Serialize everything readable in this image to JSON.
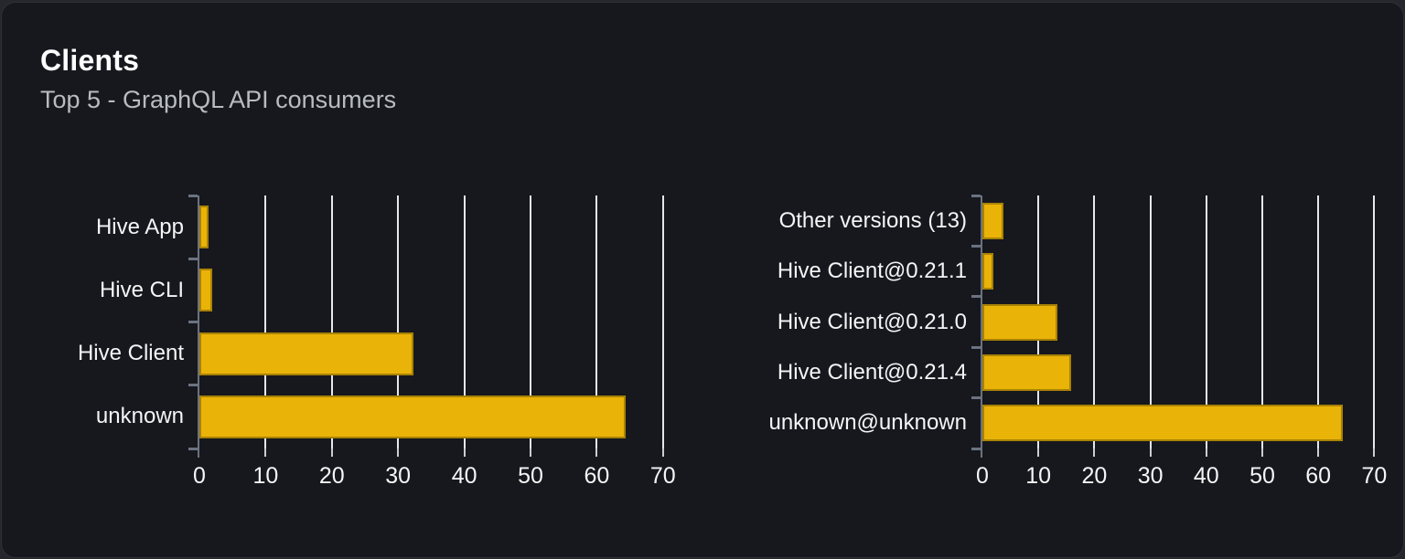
{
  "card": {
    "title": "Clients",
    "subtitle": "Top 5 - GraphQL API consumers"
  },
  "colors": {
    "bar": "#eab308",
    "grid": "#e5e7eb",
    "axis": "#6b7280",
    "tick_text": "#f4f5f6",
    "title_text": "#ffffff",
    "subtitle_text": "#b8bcc1",
    "card_bg": "#16181d",
    "page_bg": "#25272c"
  },
  "chart_data": [
    {
      "type": "bar",
      "orientation": "horizontal",
      "title": "",
      "xlabel": "",
      "ylabel": "",
      "categories": [
        "Hive App",
        "Hive CLI",
        "Hive Client",
        "unknown"
      ],
      "values": [
        1.4,
        1.9,
        32.3,
        64.4
      ],
      "xticks": [
        0,
        10,
        20,
        30,
        40,
        50,
        60,
        70
      ],
      "xlim": [
        0,
        74.5
      ],
      "grid": true,
      "legend": false
    },
    {
      "type": "bar",
      "orientation": "horizontal",
      "title": "",
      "xlabel": "",
      "ylabel": "",
      "categories": [
        "Other versions (13)",
        "Hive Client@0.21.1",
        "Hive Client@0.21.0",
        "Hive Client@0.21.4",
        "unknown@unknown"
      ],
      "values": [
        3.8,
        1.9,
        13.4,
        15.9,
        64.4
      ],
      "xticks": [
        0,
        10,
        20,
        30,
        40,
        50,
        60,
        70
      ],
      "xlim": [
        0,
        70.3
      ],
      "grid": true,
      "legend": false
    }
  ]
}
